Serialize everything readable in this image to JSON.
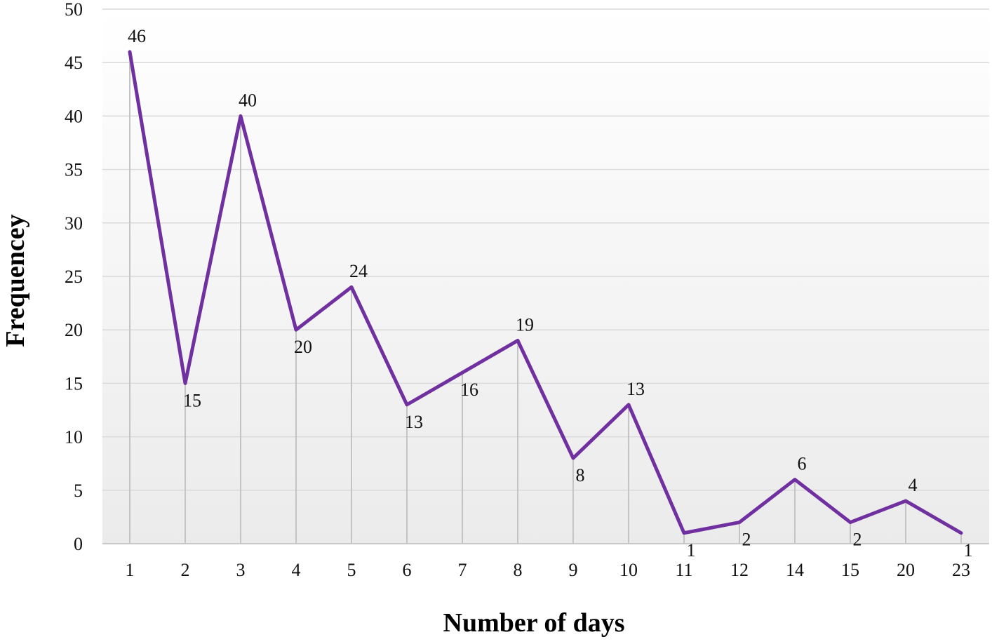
{
  "chart_data": {
    "type": "line",
    "categories": [
      "1",
      "2",
      "3",
      "4",
      "5",
      "6",
      "7",
      "8",
      "9",
      "10",
      "11",
      "12",
      "14",
      "15",
      "20",
      "23"
    ],
    "series": [
      {
        "values": [
          46,
          15,
          40,
          20,
          24,
          13,
          16,
          19,
          8,
          13,
          1,
          2,
          6,
          2,
          4,
          1
        ],
        "color": "#7030A0"
      }
    ],
    "data_labels": [
      "46",
      "15",
      "40",
      "20",
      "24",
      "13",
      "16",
      "19",
      "8",
      "13",
      "1",
      "2",
      "6",
      "2",
      "4",
      "1"
    ],
    "xlabel": "Number of days",
    "ylabel": "Frequencey",
    "ylim": [
      0,
      50
    ],
    "yticks": [
      "0",
      "5",
      "10",
      "15",
      "20",
      "25",
      "30",
      "35",
      "40",
      "45",
      "50"
    ],
    "grid": true,
    "legend": "none"
  }
}
